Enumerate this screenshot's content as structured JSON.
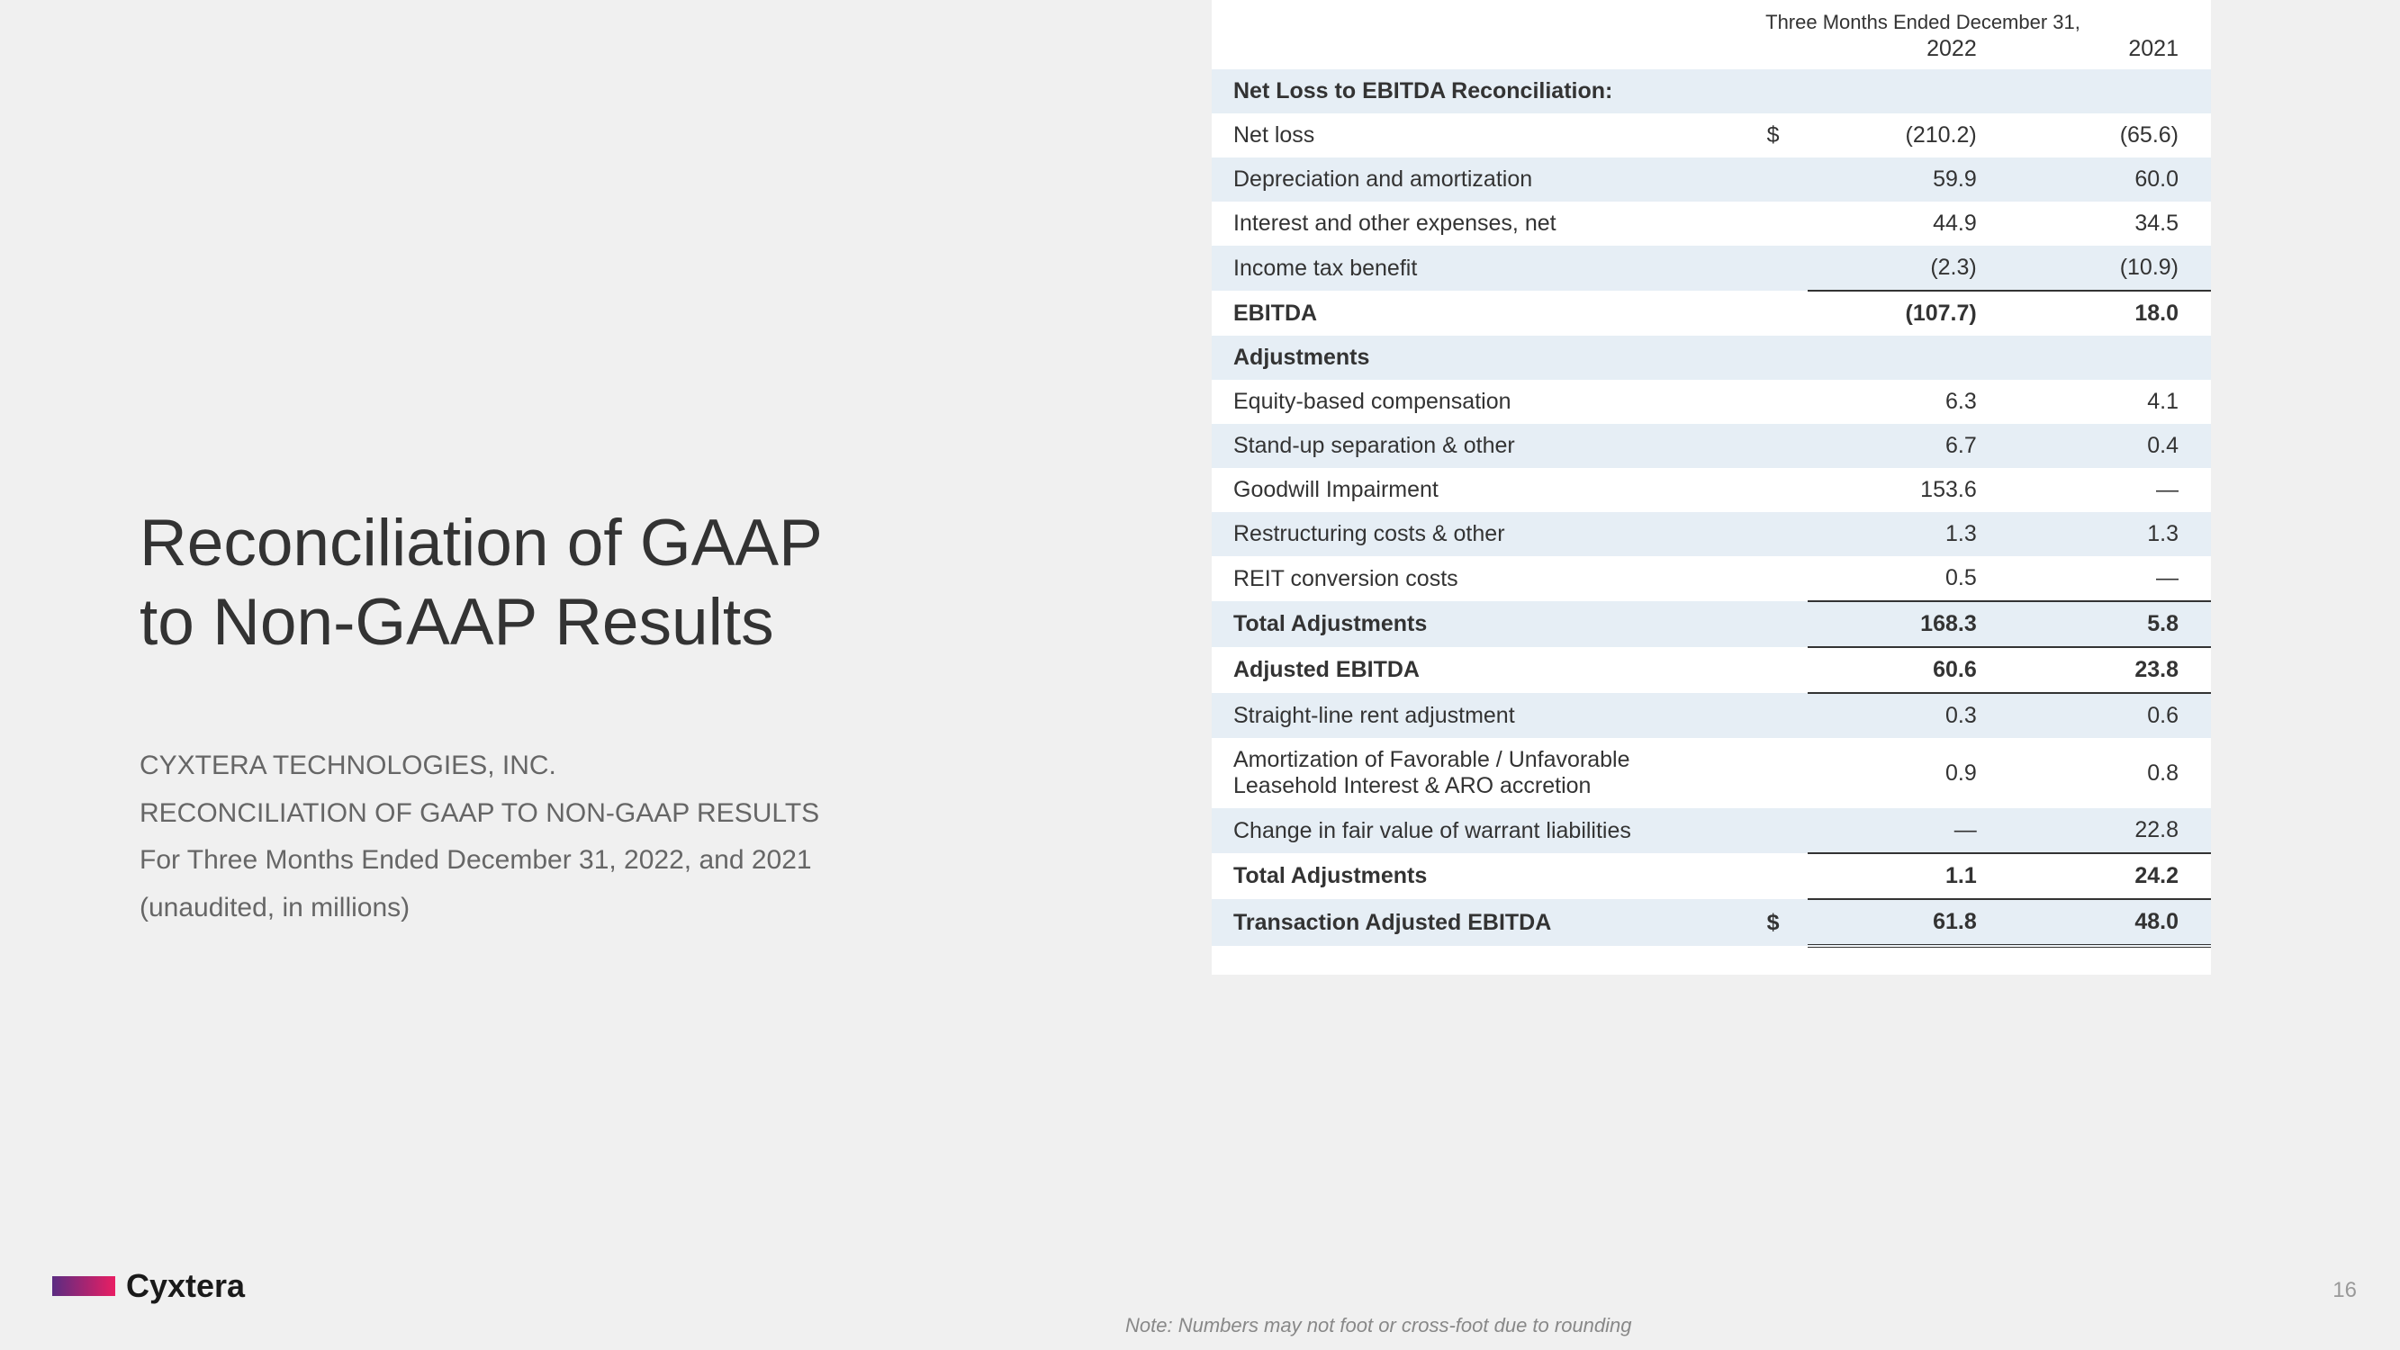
{
  "title_line1": "Reconciliation of GAAP",
  "title_line2": "to Non-GAAP Results",
  "subtitle_company": "CYXTERA TECHNOLOGIES, INC.",
  "subtitle_desc": "RECONCILIATION OF GAAP TO NON-GAAP RESULTS",
  "subtitle_period": "For Three Months Ended December 31, 2022, and 2021",
  "subtitle_unaudited": "(unaudited, in millions)",
  "logo_text": "Cyxtera",
  "page_number": "16",
  "footnote": "Note: Numbers may not foot or cross-foot due to rounding",
  "table": {
    "period_header": "Three Months Ended December 31,",
    "year1": "2022",
    "year2": "2021",
    "currency_symbol": "$",
    "colors": {
      "row_shade": "#e6eef5",
      "text": "#333333",
      "background": "#ffffff",
      "border": "#333333"
    },
    "rows": {
      "section1_header": "Net Loss to EBITDA Reconciliation:",
      "net_loss": {
        "label": "Net loss",
        "v1": "(210.2)",
        "v2": "(65.6)"
      },
      "dep_amort": {
        "label": "Depreciation and amortization",
        "v1": "59.9",
        "v2": "60.0"
      },
      "interest_exp": {
        "label": "Interest and other expenses, net",
        "v1": "44.9",
        "v2": "34.5"
      },
      "tax_benefit": {
        "label": "Income tax benefit",
        "v1": "(2.3)",
        "v2": "(10.9)"
      },
      "ebitda": {
        "label": "EBITDA",
        "v1": "(107.7)",
        "v2": "18.0"
      },
      "adjustments_header": "Adjustments",
      "equity_comp": {
        "label": "Equity-based compensation",
        "v1": "6.3",
        "v2": "4.1"
      },
      "standup": {
        "label": "Stand-up separation & other",
        "v1": "6.7",
        "v2": "0.4"
      },
      "goodwill": {
        "label": "Goodwill Impairment",
        "v1": "153.6",
        "v2": "—"
      },
      "restructuring": {
        "label": "Restructuring costs & other",
        "v1": "1.3",
        "v2": "1.3"
      },
      "reit": {
        "label": "REIT conversion costs",
        "v1": "0.5",
        "v2": "—"
      },
      "total_adj1": {
        "label": "Total Adjustments",
        "v1": "168.3",
        "v2": "5.8"
      },
      "adj_ebitda": {
        "label": "Adjusted EBITDA",
        "v1": "60.6",
        "v2": "23.8"
      },
      "straight_line": {
        "label": "Straight-line rent adjustment",
        "v1": "0.3",
        "v2": "0.6"
      },
      "amort_lease": {
        "label": "Amortization of Favorable / Unfavorable Leasehold Interest & ARO accretion",
        "v1": "0.9",
        "v2": "0.8"
      },
      "fair_value": {
        "label": "Change in fair value of warrant liabilities",
        "v1": "—",
        "v2": "22.8"
      },
      "total_adj2": {
        "label": "Total Adjustments",
        "v1": "1.1",
        "v2": "24.2"
      },
      "trans_adj_ebitda": {
        "label": "Transaction Adjusted EBITDA",
        "v1": "61.8",
        "v2": "48.0"
      }
    }
  }
}
